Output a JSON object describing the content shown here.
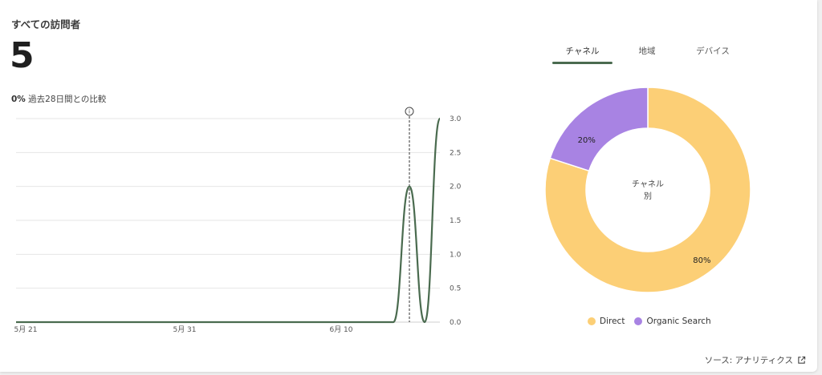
{
  "header": {
    "title": "すべての訪問者",
    "value": "5",
    "compare_pct": "0%",
    "compare_text": "過去28日間との比較"
  },
  "tabs": [
    {
      "label": "チャネル",
      "active": true
    },
    {
      "label": "地域",
      "active": false
    },
    {
      "label": "デバイス",
      "active": false
    }
  ],
  "footer": {
    "source_label": "ソース: アナリティクス",
    "source_icon": "external-link-icon"
  },
  "colors": {
    "line": "#4a6b4f",
    "direct": "#fccf76",
    "organic": "#a883e3",
    "grid": "#e6e6e6"
  },
  "chart_data": [
    {
      "type": "line",
      "x_tick_labels": [
        "5月 21",
        "5月 31",
        "6月 10"
      ],
      "y_tick_labels": [
        "0.0",
        "0.5",
        "1.0",
        "1.5",
        "2.0",
        "2.5",
        "3.0"
      ],
      "ylim": [
        0,
        3
      ],
      "series": [
        {
          "x": [
            "5月 21",
            "5月 31",
            "6月 10",
            "6月 13",
            "6月 14",
            "6月 15",
            "6月 16"
          ],
          "values": [
            0,
            0,
            0,
            0,
            2,
            0,
            3
          ]
        }
      ],
      "marker": {
        "x": "6月 14",
        "icon": "info-icon"
      },
      "grid": true
    },
    {
      "type": "pie",
      "center_label_line1": "チャネル",
      "center_label_line2": "別",
      "slices": [
        {
          "name": "Direct",
          "value": 80,
          "label": "80%",
          "color": "#fccf76"
        },
        {
          "name": "Organic Search",
          "value": 20,
          "label": "20%",
          "color": "#a883e3"
        }
      ],
      "legend": "bottom"
    }
  ]
}
